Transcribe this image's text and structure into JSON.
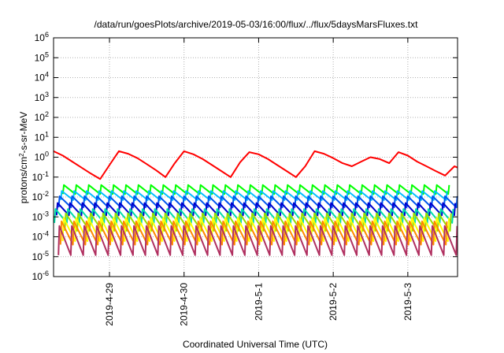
{
  "chart_data": {
    "type": "line",
    "title": "/data/run/goesPlots/archive/2019-05-03/16:00/flux/../flux/5daysMarsFluxes.txt",
    "xlabel": "Coordinated Universal Time (UTC)",
    "ylabel": {
      "prefix": "protons/cm",
      "sup": "2",
      "suffix": "-s-sr-MeV"
    },
    "yscale": "log",
    "ylim": [
      1e-06,
      1000000.0
    ],
    "yticks": [
      {
        "base": "10",
        "exp": "-6",
        "value": 1e-06
      },
      {
        "base": "10",
        "exp": "-5",
        "value": 1e-05
      },
      {
        "base": "10",
        "exp": "-4",
        "value": 0.0001
      },
      {
        "base": "10",
        "exp": "-3",
        "value": 0.001
      },
      {
        "base": "10",
        "exp": "-2",
        "value": 0.01
      },
      {
        "base": "10",
        "exp": "-1",
        "value": 0.1
      },
      {
        "base": "10",
        "exp": "0",
        "value": 1
      },
      {
        "base": "10",
        "exp": "1",
        "value": 10
      },
      {
        "base": "10",
        "exp": "2",
        "value": 100
      },
      {
        "base": "10",
        "exp": "3",
        "value": 1000
      },
      {
        "base": "10",
        "exp": "4",
        "value": 10000
      },
      {
        "base": "10",
        "exp": "5",
        "value": 100000
      },
      {
        "base": "10",
        "exp": "6",
        "value": 1000000
      }
    ],
    "xlim": [
      "2019-04-28T06:00",
      "2019-05-03T16:00"
    ],
    "xticks": [
      {
        "label": "2019-4-29",
        "value": "2019-04-29T00:00"
      },
      {
        "label": "2019-4-30",
        "value": "2019-04-30T00:00"
      },
      {
        "label": "2019-5-1",
        "value": "2019-05-01T00:00"
      },
      {
        "label": "2019-5-2",
        "value": "2019-05-02T00:00"
      },
      {
        "label": "2019-5-3",
        "value": "2019-05-03T00:00"
      }
    ],
    "grid": true,
    "series": [
      {
        "color": "#ff0000",
        "x": [
          "2019-04-28T06:00",
          "2019-04-28T09:00",
          "2019-04-28T12:00",
          "2019-04-28T15:00",
          "2019-04-28T18:00",
          "2019-04-28T21:00",
          "2019-04-29T00:00",
          "2019-04-29T03:00",
          "2019-04-29T06:00",
          "2019-04-29T09:00",
          "2019-04-29T12:00",
          "2019-04-29T15:00",
          "2019-04-29T18:00",
          "2019-04-29T21:00",
          "2019-04-30T00:00",
          "2019-04-30T03:00",
          "2019-04-30T06:00",
          "2019-04-30T09:00",
          "2019-04-30T12:00",
          "2019-04-30T15:00",
          "2019-04-30T18:00",
          "2019-04-30T21:00",
          "2019-05-01T00:00",
          "2019-05-01T03:00",
          "2019-05-01T06:00",
          "2019-05-01T09:00",
          "2019-05-01T12:00",
          "2019-05-01T15:00",
          "2019-05-01T18:00",
          "2019-05-01T21:00",
          "2019-05-02T00:00",
          "2019-05-02T03:00",
          "2019-05-02T06:00",
          "2019-05-02T09:00",
          "2019-05-02T12:00",
          "2019-05-02T15:00",
          "2019-05-02T18:00",
          "2019-05-02T21:00",
          "2019-05-03T00:00",
          "2019-05-03T03:00",
          "2019-05-03T06:00",
          "2019-05-03T09:00",
          "2019-05-03T12:00",
          "2019-05-03T15:00",
          "2019-05-03T16:00"
        ],
        "values": [
          2,
          1.2,
          0.6,
          0.3,
          0.15,
          0.08,
          0.4,
          2,
          1.5,
          0.9,
          0.45,
          0.22,
          0.1,
          0.5,
          2,
          1.4,
          0.8,
          0.4,
          0.2,
          0.1,
          0.55,
          1.8,
          1.4,
          0.8,
          0.4,
          0.2,
          0.1,
          0.35,
          2,
          1.5,
          0.9,
          0.5,
          0.35,
          0.6,
          1,
          0.8,
          0.5,
          1.8,
          1.2,
          0.6,
          0.35,
          0.2,
          0.12,
          0.35,
          0.3
        ]
      },
      {
        "color": "#00ff00",
        "period_h": 4,
        "peak": 0.04,
        "trough": 0.014
      },
      {
        "color": "#00bfff",
        "period_h": 4,
        "peak": 0.02,
        "trough": 0.007
      },
      {
        "color": "#0055ee",
        "period_h": 4,
        "peak": 0.011,
        "trough": 0.003
      },
      {
        "color": "#0000cc",
        "period_h": 4,
        "peak": 0.005,
        "trough": 0.0012
      },
      {
        "color": "#00ddaa",
        "period_h": 4,
        "peak": 0.0025,
        "trough": 0.0005
      },
      {
        "color": "#99dd00",
        "period_h": 4,
        "peak": 0.0015,
        "trough": 0.0002
      },
      {
        "color": "#ffff00",
        "period_h": 4,
        "peak": 0.0009,
        "trough": 6e-05
      },
      {
        "color": "#ff8800",
        "period_h": 4,
        "peak": 0.0006,
        "trough": 4e-05
      },
      {
        "color": "#b03060",
        "period_h": 4,
        "peak": 0.00035,
        "trough": 1.2e-05
      }
    ]
  }
}
